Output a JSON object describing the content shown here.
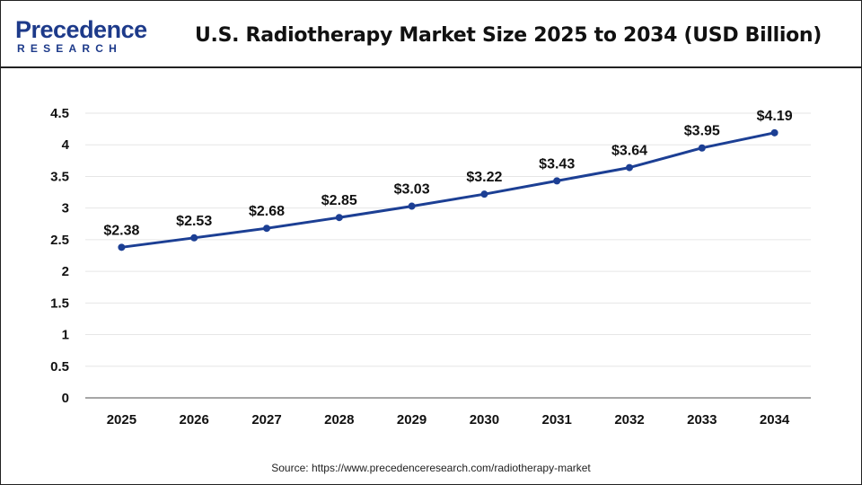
{
  "header": {
    "logo_main": "Precedence",
    "logo_sub": "RESEARCH",
    "title": "U.S. Radiotherapy Market Size 2025 to 2034 (USD Billion)"
  },
  "source": "Source: https://www.precedenceresearch.com/radiotherapy-market",
  "colors": {
    "line": "#1c3f94",
    "marker": "#1c3f94",
    "grid": "#e6e6e6",
    "axis": "#888888",
    "text": "#111111"
  },
  "chart_data": {
    "type": "line",
    "title": "U.S. Radiotherapy Market Size 2025 to 2034 (USD Billion)",
    "xlabel": "",
    "ylabel": "",
    "categories": [
      "2025",
      "2026",
      "2027",
      "2028",
      "2029",
      "2030",
      "2031",
      "2032",
      "2033",
      "2034"
    ],
    "series": [
      {
        "values": [
          2.38,
          2.53,
          2.68,
          2.85,
          3.03,
          3.22,
          3.43,
          3.64,
          3.95,
          4.19
        ],
        "labels": [
          "$2.38",
          "$2.53",
          "$2.68",
          "$2.85",
          "$3.03",
          "$3.22",
          "$3.43",
          "$3.64",
          "$3.95",
          "$4.19"
        ]
      }
    ],
    "ylim": [
      0,
      4.5
    ],
    "yticks": [
      "0",
      "0.5",
      "1",
      "1.5",
      "2",
      "2.5",
      "3",
      "3.5",
      "4",
      "4.5"
    ],
    "grid": true,
    "legend": "none"
  }
}
